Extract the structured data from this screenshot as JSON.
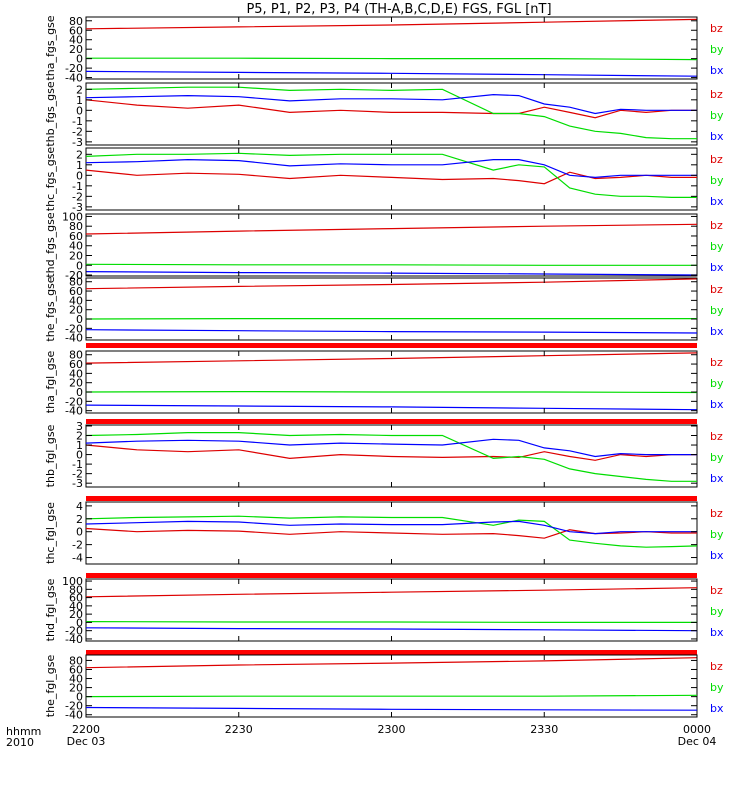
{
  "figure": {
    "title": "P5, P1, P2, P3, P4 (TH-A,B,C,D,E) FGS, FGL [nT]",
    "time_axis": {
      "ticks": [
        {
          "t": 0,
          "label": "2200",
          "sub": "Dec 03"
        },
        {
          "t": 30,
          "label": "2230",
          "sub": ""
        },
        {
          "t": 60,
          "label": "2300",
          "sub": ""
        },
        {
          "t": 90,
          "label": "2330",
          "sub": ""
        },
        {
          "t": 120,
          "label": "0000",
          "sub": "Dec 04"
        }
      ],
      "row_labels": [
        "hhmm",
        "2010"
      ],
      "range_minutes": [
        0,
        120
      ]
    }
  },
  "colors": {
    "bx": "#0000ff",
    "by": "#00dd00",
    "bz": "#dd0000",
    "axis": "#000000",
    "bar": "#ff0000"
  },
  "chart_data": [
    {
      "type": "line",
      "ylabel": "tha_fgs_gse",
      "yticks": [
        80,
        60,
        40,
        20,
        0,
        -20,
        -40
      ],
      "ylim": [
        -43,
        88
      ],
      "legend": [
        "bz",
        "by",
        "bx"
      ],
      "series": [
        {
          "name": "bz",
          "x": [
            0,
            30,
            60,
            90,
            120
          ],
          "y": [
            63,
            67,
            71,
            77,
            83
          ]
        },
        {
          "name": "by",
          "x": [
            0,
            30,
            60,
            90,
            120
          ],
          "y": [
            1,
            1,
            0,
            0,
            -2
          ]
        },
        {
          "name": "bx",
          "x": [
            0,
            30,
            60,
            90,
            120
          ],
          "y": [
            -27,
            -29,
            -31,
            -34,
            -37
          ]
        }
      ]
    },
    {
      "type": "line",
      "ylabel": "thb_fgs_gse",
      "yticks": [
        2,
        1,
        0,
        -1,
        -2,
        -3
      ],
      "ylim": [
        -3.3,
        2.6
      ],
      "legend": [
        "bz",
        "by",
        "bx"
      ],
      "series": [
        {
          "name": "bz",
          "x": [
            0,
            10,
            20,
            30,
            40,
            50,
            60,
            70,
            80,
            85,
            90,
            95,
            100,
            105,
            110,
            115,
            120
          ],
          "y": [
            1,
            0.5,
            0.2,
            0.5,
            -0.2,
            0,
            -0.2,
            -0.2,
            -0.3,
            -0.3,
            0.3,
            -0.2,
            -0.7,
            0,
            -0.2,
            0,
            0
          ]
        },
        {
          "name": "by",
          "x": [
            0,
            10,
            20,
            30,
            40,
            50,
            60,
            70,
            80,
            85,
            90,
            95,
            100,
            105,
            110,
            115,
            120
          ],
          "y": [
            2,
            2.1,
            2.2,
            2.2,
            1.9,
            2,
            1.9,
            2,
            -0.3,
            -0.3,
            -0.6,
            -1.5,
            -2,
            -2.2,
            -2.6,
            -2.7,
            -2.7
          ]
        },
        {
          "name": "bx",
          "x": [
            0,
            10,
            20,
            30,
            40,
            50,
            60,
            70,
            80,
            85,
            90,
            95,
            100,
            105,
            110,
            115,
            120
          ],
          "y": [
            1.2,
            1.3,
            1.4,
            1.3,
            0.9,
            1.1,
            1.1,
            1,
            1.5,
            1.4,
            0.6,
            0.3,
            -0.3,
            0.1,
            0,
            0,
            0
          ]
        }
      ]
    },
    {
      "type": "line",
      "ylabel": "thc_fgs_gse",
      "yticks": [
        2,
        1,
        0,
        -1,
        -2,
        -3
      ],
      "ylim": [
        -3.3,
        2.6
      ],
      "legend": [
        "bz",
        "by",
        "bx"
      ],
      "series": [
        {
          "name": "bz",
          "x": [
            0,
            10,
            20,
            30,
            40,
            50,
            60,
            70,
            80,
            85,
            90,
            95,
            100,
            105,
            110,
            115,
            120
          ],
          "y": [
            0.5,
            0,
            0.2,
            0.1,
            -0.3,
            0,
            -0.2,
            -0.4,
            -0.3,
            -0.5,
            -0.8,
            0.3,
            -0.3,
            -0.2,
            0,
            -0.2,
            -0.2
          ]
        },
        {
          "name": "by",
          "x": [
            0,
            10,
            20,
            30,
            40,
            50,
            60,
            70,
            80,
            85,
            90,
            95,
            100,
            105,
            110,
            115,
            120
          ],
          "y": [
            1.8,
            2,
            2,
            2.1,
            1.9,
            2,
            2,
            2,
            0.5,
            1,
            0.8,
            -1.2,
            -1.8,
            -2,
            -2,
            -2.1,
            -2.1
          ]
        },
        {
          "name": "bx",
          "x": [
            0,
            10,
            20,
            30,
            40,
            50,
            60,
            70,
            80,
            85,
            90,
            95,
            100,
            105,
            110,
            115,
            120
          ],
          "y": [
            1.2,
            1.3,
            1.5,
            1.4,
            0.9,
            1.1,
            1,
            1,
            1.5,
            1.5,
            1,
            0,
            -0.2,
            0,
            0,
            0,
            0
          ]
        }
      ]
    },
    {
      "type": "line",
      "ylabel": "thd_fgs_gse",
      "yticks": [
        100,
        80,
        60,
        40,
        20,
        0,
        -20
      ],
      "ylim": [
        -22,
        105
      ],
      "legend": [
        "bz",
        "by",
        "bx"
      ],
      "series": [
        {
          "name": "bz",
          "x": [
            0,
            30,
            60,
            90,
            120
          ],
          "y": [
            64,
            70,
            75,
            80,
            84
          ]
        },
        {
          "name": "by",
          "x": [
            0,
            30,
            60,
            90,
            120
          ],
          "y": [
            2,
            1,
            1,
            0,
            0
          ]
        },
        {
          "name": "bx",
          "x": [
            0,
            30,
            60,
            90,
            120
          ],
          "y": [
            -13,
            -15,
            -16,
            -18,
            -20
          ]
        }
      ]
    },
    {
      "type": "line",
      "ylabel": "the_fgs_gse",
      "yticks": [
        80,
        60,
        40,
        20,
        0,
        -20,
        -40
      ],
      "ylim": [
        -45,
        88
      ],
      "legend": [
        "bz",
        "by",
        "bx"
      ],
      "series": [
        {
          "name": "bz",
          "x": [
            0,
            30,
            60,
            90,
            120
          ],
          "y": [
            65,
            70,
            74,
            79,
            86
          ]
        },
        {
          "name": "by",
          "x": [
            0,
            30,
            60,
            90,
            120
          ],
          "y": [
            0,
            1,
            1,
            1,
            1
          ]
        },
        {
          "name": "bx",
          "x": [
            0,
            30,
            60,
            90,
            120
          ],
          "y": [
            -23,
            -25,
            -27,
            -28,
            -30
          ]
        }
      ]
    },
    {
      "type": "line",
      "ylabel": "tha_fgl_gse",
      "yticks": [
        80,
        60,
        40,
        20,
        0,
        -20,
        -40
      ],
      "ylim": [
        -45,
        88
      ],
      "legend": [
        "bz",
        "by",
        "bx"
      ],
      "series": [
        {
          "name": "bz",
          "x": [
            0,
            30,
            60,
            90,
            120
          ],
          "y": [
            62,
            67,
            72,
            78,
            84
          ]
        },
        {
          "name": "by",
          "x": [
            0,
            30,
            60,
            90,
            120
          ],
          "y": [
            0,
            1,
            0,
            0,
            -1
          ]
        },
        {
          "name": "bx",
          "x": [
            0,
            30,
            60,
            90,
            120
          ],
          "y": [
            -28,
            -30,
            -32,
            -35,
            -38
          ]
        }
      ]
    },
    {
      "type": "line",
      "ylabel": "thb_fgl_gse",
      "yticks": [
        3,
        2,
        1,
        0,
        -1,
        -2,
        -3
      ],
      "ylim": [
        -3.4,
        3.1
      ],
      "legend": [
        "bz",
        "by",
        "bx"
      ],
      "series": [
        {
          "name": "bz",
          "x": [
            0,
            10,
            20,
            30,
            40,
            50,
            60,
            70,
            80,
            85,
            90,
            95,
            100,
            105,
            110,
            115,
            120
          ],
          "y": [
            1,
            0.5,
            0.3,
            0.5,
            -0.4,
            0,
            -0.2,
            -0.3,
            -0.2,
            -0.3,
            0.3,
            -0.2,
            -0.6,
            0,
            -0.2,
            0,
            0
          ]
        },
        {
          "name": "by",
          "x": [
            0,
            10,
            20,
            30,
            40,
            50,
            60,
            70,
            80,
            85,
            90,
            95,
            100,
            105,
            110,
            115,
            120
          ],
          "y": [
            2,
            2.1,
            2.3,
            2.3,
            2,
            2.1,
            2,
            2,
            -0.4,
            -0.2,
            -0.5,
            -1.5,
            -2,
            -2.3,
            -2.6,
            -2.8,
            -2.8
          ]
        },
        {
          "name": "bx",
          "x": [
            0,
            10,
            20,
            30,
            40,
            50,
            60,
            70,
            80,
            85,
            90,
            95,
            100,
            105,
            110,
            115,
            120
          ],
          "y": [
            1.2,
            1.4,
            1.5,
            1.4,
            1,
            1.2,
            1.1,
            1,
            1.6,
            1.5,
            0.7,
            0.4,
            -0.2,
            0.1,
            0,
            0,
            0
          ]
        }
      ]
    },
    {
      "type": "line",
      "ylabel": "thc_fgl_gse",
      "yticks": [
        4,
        2,
        0,
        -2,
        -4
      ],
      "ylim": [
        -5,
        4.6
      ],
      "legend": [
        "bz",
        "by",
        "bx"
      ],
      "series": [
        {
          "name": "bz",
          "x": [
            0,
            10,
            20,
            30,
            40,
            50,
            60,
            70,
            80,
            85,
            90,
            95,
            100,
            105,
            110,
            115,
            120
          ],
          "y": [
            0.5,
            0,
            0.2,
            0.1,
            -0.4,
            0,
            -0.2,
            -0.4,
            -0.3,
            -0.6,
            -1,
            0.3,
            -0.3,
            -0.2,
            0,
            -0.2,
            -0.2
          ]
        },
        {
          "name": "by",
          "x": [
            0,
            10,
            20,
            30,
            40,
            50,
            60,
            70,
            80,
            85,
            90,
            95,
            100,
            105,
            110,
            115,
            120
          ],
          "y": [
            2,
            2.2,
            2.3,
            2.4,
            2.1,
            2.3,
            2.2,
            2.2,
            1,
            1.8,
            1.6,
            -1.3,
            -1.8,
            -2.2,
            -2.4,
            -2.3,
            -2.2
          ]
        },
        {
          "name": "bx",
          "x": [
            0,
            10,
            20,
            30,
            40,
            50,
            60,
            70,
            80,
            85,
            90,
            95,
            100,
            105,
            110,
            115,
            120
          ],
          "y": [
            1.2,
            1.4,
            1.6,
            1.5,
            1,
            1.2,
            1.1,
            1.1,
            1.5,
            1.6,
            1,
            0,
            -0.3,
            0,
            0,
            0,
            0
          ]
        }
      ]
    },
    {
      "type": "line",
      "ylabel": "thd_fgl_gse",
      "yticks": [
        100,
        80,
        60,
        40,
        20,
        0,
        -20,
        -40
      ],
      "ylim": [
        -45,
        105
      ],
      "legend": [
        "bz",
        "by",
        "bx"
      ],
      "series": [
        {
          "name": "bz",
          "x": [
            0,
            30,
            60,
            90,
            120
          ],
          "y": [
            62,
            68,
            73,
            78,
            84
          ]
        },
        {
          "name": "by",
          "x": [
            0,
            30,
            60,
            90,
            120
          ],
          "y": [
            2,
            1,
            1,
            0,
            0
          ]
        },
        {
          "name": "bx",
          "x": [
            0,
            30,
            60,
            90,
            120
          ],
          "y": [
            -13,
            -15,
            -16,
            -18,
            -20
          ]
        }
      ]
    },
    {
      "type": "line",
      "ylabel": "the_fgl_gse",
      "yticks": [
        80,
        60,
        40,
        20,
        0,
        -20,
        -40
      ],
      "ylim": [
        -45,
        92
      ],
      "legend": [
        "bz",
        "by",
        "bx"
      ],
      "series": [
        {
          "name": "bz",
          "x": [
            0,
            30,
            60,
            90,
            120
          ],
          "y": [
            64,
            70,
            74,
            79,
            86
          ]
        },
        {
          "name": "by",
          "x": [
            0,
            30,
            60,
            90,
            120
          ],
          "y": [
            0,
            1,
            1,
            1,
            3
          ]
        },
        {
          "name": "bx",
          "x": [
            0,
            30,
            60,
            90,
            120
          ],
          "y": [
            -24,
            -26,
            -28,
            -29,
            -30
          ]
        }
      ]
    }
  ]
}
